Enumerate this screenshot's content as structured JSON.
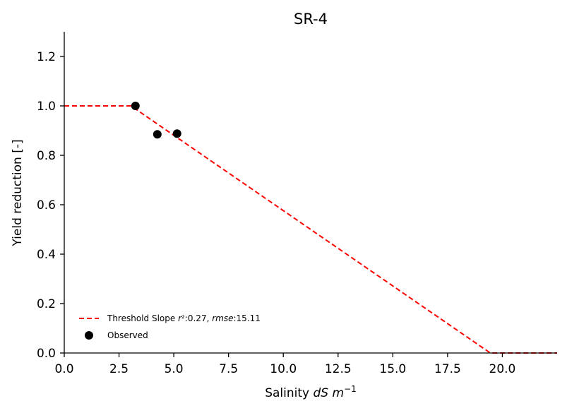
{
  "chart_data": {
    "type": "scatter",
    "title": "SR-4",
    "xlabel": {
      "prefix": "Salinity ",
      "var": "dS m",
      "sup": "−1"
    },
    "ylabel": "Yield reduction [-]",
    "xlim": [
      0,
      22.5
    ],
    "ylim": [
      0,
      1.3
    ],
    "xticks": [
      0.0,
      2.5,
      5.0,
      7.5,
      10.0,
      12.5,
      15.0,
      17.5,
      20.0
    ],
    "xtick_labels": [
      "0.0",
      "2.5",
      "5.0",
      "7.5",
      "10.0",
      "12.5",
      "15.0",
      "17.5",
      "20.0"
    ],
    "yticks": [
      0.0,
      0.2,
      0.4,
      0.6,
      0.8,
      1.0,
      1.2
    ],
    "ytick_labels": [
      "0.0",
      "0.2",
      "0.4",
      "0.6",
      "0.8",
      "1.0",
      "1.2"
    ],
    "grid": false,
    "legend_position": "lower-left",
    "series": [
      {
        "name": "Threshold Slope r²:0.27, rmse:15.11",
        "kind": "line",
        "style": "dashed",
        "color": "#ff0000",
        "x": [
          0.0,
          3.05,
          19.45,
          22.5
        ],
        "y": [
          1.0,
          1.0,
          0.0,
          0.0
        ]
      },
      {
        "name": "Observed",
        "kind": "scatter",
        "color": "#000000",
        "x": [
          3.25,
          4.25,
          5.15
        ],
        "y": [
          1.0,
          0.885,
          0.888
        ]
      }
    ],
    "legend": {
      "line_label": {
        "text1": "Threshold Slope ",
        "v1": "r",
        "text2": "²:0.27, ",
        "v2": "rmse",
        "text3": ":15.11"
      },
      "scatter_label": "Observed"
    }
  }
}
